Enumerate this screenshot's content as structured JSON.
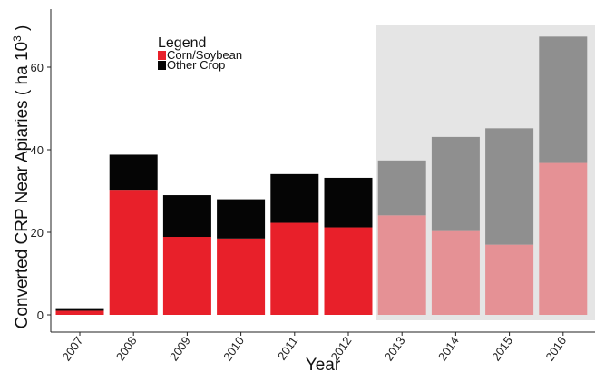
{
  "chart_data": {
    "type": "bar",
    "stacked": true,
    "title": "",
    "xlabel": "Year",
    "ylabel": "Converted CRP Near Apiaries ( ha 10",
    "ylabel_superscript": "3",
    "ylabel_close": ")",
    "ylim": [
      0,
      70
    ],
    "yticks": [
      0,
      20,
      40,
      60
    ],
    "grid": false,
    "legend": {
      "title": "Legend",
      "placement": "top-left",
      "entries": [
        "Corn/Soybean",
        "Other Crop"
      ]
    },
    "categories": [
      "2007",
      "2008",
      "2009",
      "2010",
      "2011",
      "2012",
      "2013",
      "2014",
      "2015",
      "2016"
    ],
    "series": [
      {
        "name": "Corn/Soybean",
        "values": [
          1.0,
          30.3,
          18.9,
          18.5,
          22.3,
          21.2,
          24.1,
          20.3,
          17.0,
          36.8
        ],
        "color": "#e8202a",
        "projected_color": "#e59195"
      },
      {
        "name": "Other Crop",
        "values": [
          0.4,
          8.5,
          10.1,
          9.5,
          11.8,
          12.0,
          13.3,
          22.8,
          28.2,
          30.6
        ],
        "color": "#050505",
        "projected_color": "#8f8f8f"
      }
    ],
    "shaded_region": {
      "from": "2013",
      "to": "2016",
      "color": "#e5e5e5"
    }
  }
}
